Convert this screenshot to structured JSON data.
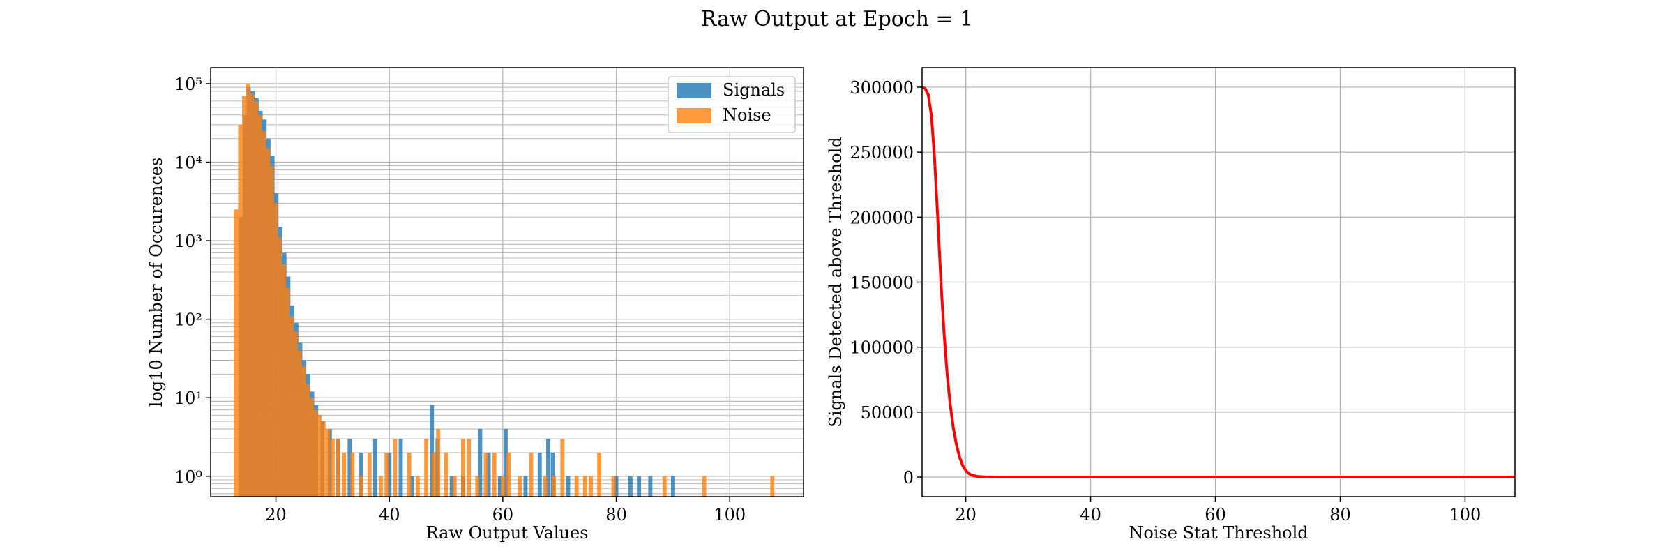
{
  "title": "Raw Output at Epoch = 1",
  "colors": {
    "signals": "#1f77b4",
    "noise": "#ff7f0e",
    "curve": "#ff0000",
    "grid": "#b0b0b0"
  },
  "chart_data": [
    {
      "type": "bar",
      "subtype": "histogram",
      "xlabel": "Raw Output Values",
      "ylabel": "log10 Number of Occurences",
      "yscale": "log",
      "xlim": [
        8.5,
        113
      ],
      "ylim": [
        0.55,
        160000
      ],
      "xticks": [
        20,
        40,
        60,
        80,
        100
      ],
      "xtick_labels": [
        "20",
        "40",
        "60",
        "80",
        "100"
      ],
      "yticks": [
        1,
        10,
        100,
        1000,
        10000,
        100000
      ],
      "ytick_labels": [
        "10⁰",
        "10¹",
        "10²",
        "10³",
        "10⁴",
        "10⁵"
      ],
      "grid": true,
      "legend": {
        "placement": "top-right",
        "entries": [
          "Signals",
          "Noise"
        ]
      },
      "series": [
        {
          "name": "Signals",
          "bins": [
            [
              13.8,
              2000
            ],
            [
              14.5,
              40000
            ],
            [
              15.2,
              90000
            ],
            [
              15.9,
              80000
            ],
            [
              16.6,
              65000
            ],
            [
              17.3,
              45000
            ],
            [
              18.0,
              35000
            ],
            [
              18.7,
              20000
            ],
            [
              19.4,
              12000
            ],
            [
              20.1,
              4000
            ],
            [
              20.8,
              1500
            ],
            [
              21.5,
              700
            ],
            [
              22.2,
              350
            ],
            [
              22.9,
              150
            ],
            [
              23.6,
              90
            ],
            [
              24.3,
              50
            ],
            [
              25.0,
              30
            ],
            [
              25.7,
              20
            ],
            [
              26.4,
              12
            ],
            [
              27.1,
              8
            ],
            [
              28.2,
              5
            ],
            [
              29.5,
              4
            ],
            [
              31.0,
              3
            ],
            [
              33.0,
              3
            ],
            [
              35.0,
              2
            ],
            [
              37.5,
              3
            ],
            [
              40.0,
              2
            ],
            [
              42.0,
              3
            ],
            [
              44.0,
              1
            ],
            [
              47.5,
              8
            ],
            [
              48.5,
              3
            ],
            [
              51.0,
              1
            ],
            [
              53.0,
              1
            ],
            [
              56.0,
              4
            ],
            [
              57.5,
              2
            ],
            [
              59.5,
              1
            ],
            [
              60.5,
              4
            ],
            [
              64.0,
              1
            ],
            [
              66.5,
              2
            ],
            [
              68.0,
              3
            ],
            [
              68.8,
              2
            ],
            [
              71.5,
              1
            ],
            [
              80.0,
              1
            ],
            [
              82.5,
              1
            ],
            [
              84.0,
              1
            ],
            [
              86.0,
              1
            ],
            [
              90.0,
              1
            ]
          ]
        },
        {
          "name": "Noise",
          "bins": [
            [
              13.0,
              2500
            ],
            [
              13.7,
              30000
            ],
            [
              14.4,
              70000
            ],
            [
              15.1,
              100000
            ],
            [
              15.8,
              75000
            ],
            [
              16.5,
              60000
            ],
            [
              17.2,
              40000
            ],
            [
              17.9,
              25000
            ],
            [
              18.6,
              15000
            ],
            [
              19.3,
              9000
            ],
            [
              20.0,
              3000
            ],
            [
              20.7,
              1100
            ],
            [
              21.4,
              500
            ],
            [
              22.1,
              250
            ],
            [
              22.8,
              110
            ],
            [
              23.5,
              70
            ],
            [
              24.2,
              40
            ],
            [
              24.9,
              25
            ],
            [
              25.6,
              15
            ],
            [
              26.3,
              10
            ],
            [
              27.0,
              7
            ],
            [
              27.7,
              6
            ],
            [
              28.4,
              5
            ],
            [
              29.2,
              4
            ],
            [
              30.0,
              3
            ],
            [
              31.0,
              3
            ],
            [
              32.0,
              2
            ],
            [
              33.5,
              2
            ],
            [
              35.0,
              1
            ],
            [
              36.5,
              2
            ],
            [
              38.5,
              1
            ],
            [
              39.5,
              2
            ],
            [
              41.0,
              3
            ],
            [
              43.5,
              2
            ],
            [
              45.0,
              1
            ],
            [
              46.5,
              3
            ],
            [
              47.8,
              2
            ],
            [
              48.6,
              4
            ],
            [
              50.0,
              2
            ],
            [
              51.5,
              1
            ],
            [
              53.0,
              3
            ],
            [
              54.0,
              3
            ],
            [
              55.5,
              1
            ],
            [
              57.0,
              2
            ],
            [
              58.5,
              2
            ],
            [
              60.0,
              1
            ],
            [
              61.0,
              2
            ],
            [
              63.0,
              1
            ],
            [
              65.0,
              2
            ],
            [
              67.5,
              1
            ],
            [
              69.0,
              1
            ],
            [
              70.5,
              3
            ],
            [
              73.0,
              1
            ],
            [
              74.5,
              1
            ],
            [
              75.5,
              1
            ],
            [
              77.0,
              2
            ],
            [
              79.5,
              1
            ],
            [
              88.5,
              1
            ],
            [
              95.5,
              1
            ],
            [
              107.5,
              1
            ]
          ]
        }
      ]
    },
    {
      "type": "line",
      "xlabel": "Noise Stat Threshold",
      "ylabel": "Signals Detected above Threshold",
      "xlim": [
        13,
        108
      ],
      "ylim": [
        -15000,
        315000
      ],
      "xticks": [
        20,
        40,
        60,
        80,
        100
      ],
      "xtick_labels": [
        "20",
        "40",
        "60",
        "80",
        "100"
      ],
      "yticks": [
        0,
        50000,
        100000,
        150000,
        200000,
        250000,
        300000
      ],
      "ytick_labels": [
        "0",
        "50000",
        "100000",
        "150000",
        "200000",
        "250000",
        "300000"
      ],
      "grid": true,
      "series": [
        {
          "name": "",
          "x": [
            13,
            13.5,
            14,
            14.5,
            15,
            15.5,
            16,
            16.5,
            17,
            17.5,
            18,
            18.5,
            19,
            19.5,
            20,
            20.5,
            21,
            22,
            23,
            25,
            30,
            40,
            60,
            80,
            108
          ],
          "y": [
            300000,
            299000,
            294000,
            278000,
            245000,
            200000,
            152000,
            112000,
            80000,
            56000,
            38000,
            25000,
            15500,
            9000,
            5000,
            2700,
            1400,
            400,
            150,
            50,
            10,
            2,
            0,
            0,
            0
          ]
        }
      ]
    }
  ]
}
